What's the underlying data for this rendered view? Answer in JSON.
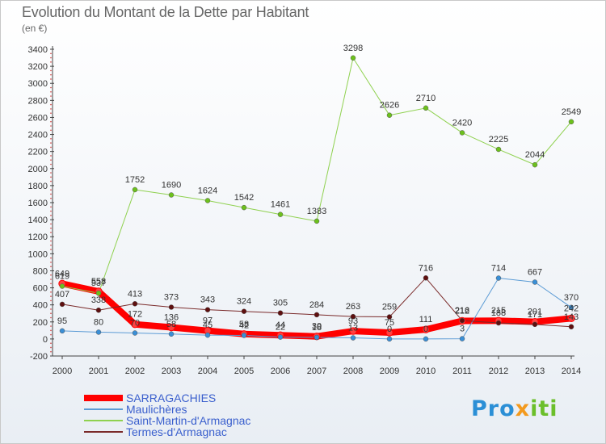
{
  "title": "Evolution du Montant de la Dette par Habitant",
  "subtitle": "(en €)",
  "logo": [
    "Pro",
    "x",
    "iti"
  ],
  "chart_data": {
    "type": "line",
    "x": [
      2000,
      2001,
      2002,
      2003,
      2004,
      2005,
      2006,
      2007,
      2008,
      2009,
      2010,
      2011,
      2012,
      2013,
      2014
    ],
    "ylim": [
      -200,
      3400
    ],
    "yticks": [
      -200,
      0,
      200,
      400,
      600,
      800,
      1000,
      1200,
      1400,
      1600,
      1800,
      2000,
      2200,
      2400,
      2600,
      2800,
      3000,
      3200,
      3400
    ],
    "grid": false,
    "legend_position": "bottom-left",
    "series": [
      {
        "name": "SARRAGACHIES",
        "color": "#ff0000",
        "width": 8,
        "marker": "#ff4040",
        "values": [
          649,
          558,
          172,
          136,
          97,
          58,
          44,
          30,
          93,
          75,
          111,
          212,
          215,
          201,
          242
        ]
      },
      {
        "name": "Maulichères",
        "color": "#5b9bd5",
        "width": 1,
        "marker": "#3a8fd6",
        "values": [
          95,
          80,
          70,
          58,
          45,
          42,
          22,
          18,
          13,
          0,
          0,
          3,
          714,
          667,
          370
        ]
      },
      {
        "name": "Saint-Martin-d'Armagnac",
        "color": "#8fd14f",
        "width": 1,
        "marker": "#6cc01c",
        "values": [
          619,
          537,
          1752,
          1690,
          1624,
          1542,
          1461,
          1383,
          3298,
          2626,
          2710,
          2420,
          2225,
          2044,
          2549
        ]
      },
      {
        "name": "Termes-d'Armagnac",
        "color": "#7a2a2a",
        "width": 1,
        "marker": "#5e0f0f",
        "values": [
          407,
          338,
          413,
          373,
          343,
          324,
          305,
          284,
          263,
          259,
          716,
          216,
          188,
          171,
          143
        ]
      }
    ]
  }
}
